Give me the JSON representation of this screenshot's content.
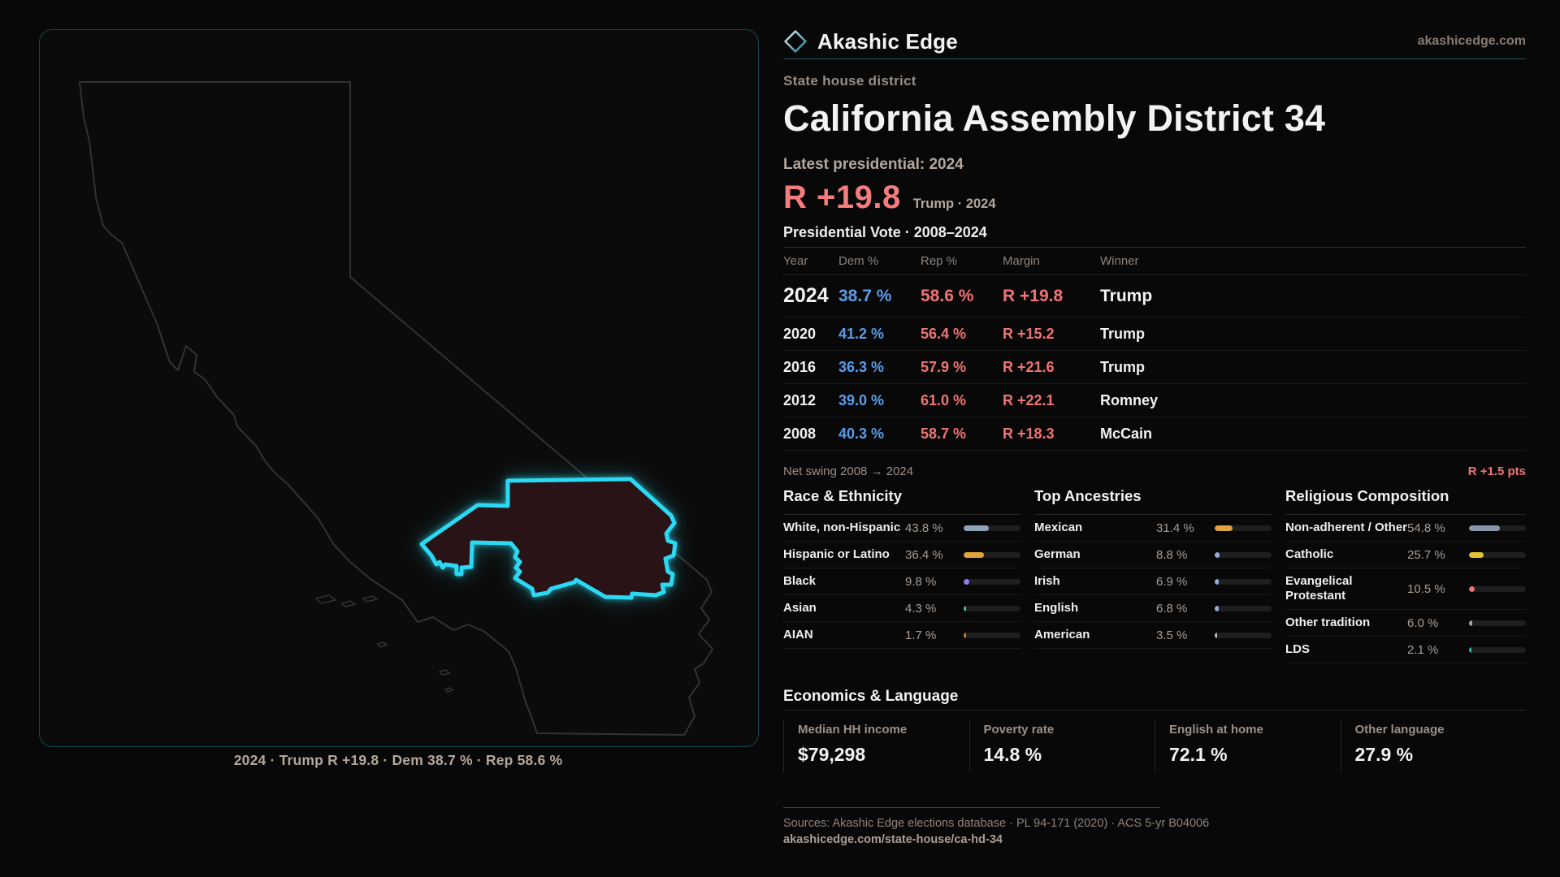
{
  "brand": {
    "name": "Akashic Edge",
    "domain": "akashicedge.com"
  },
  "page": {
    "kicker": "State house district",
    "title": "California Assembly District 34"
  },
  "latest": {
    "label": "Latest presidential: 2024",
    "margin": "R +19.8",
    "detail": "Trump · 2024"
  },
  "vote_table": {
    "title": "Presidential Vote · 2008–2024",
    "columns": [
      "Year",
      "Dem %",
      "Rep %",
      "Margin",
      "Winner"
    ],
    "rows": [
      {
        "year": "2024",
        "dem": "38.7 %",
        "rep": "58.6 %",
        "margin": "R +19.8",
        "winner": "Trump",
        "main": true
      },
      {
        "year": "2020",
        "dem": "41.2 %",
        "rep": "56.4 %",
        "margin": "R +15.2",
        "winner": "Trump",
        "main": false
      },
      {
        "year": "2016",
        "dem": "36.3 %",
        "rep": "57.9 %",
        "margin": "R +21.6",
        "winner": "Trump",
        "main": false
      },
      {
        "year": "2012",
        "dem": "39.0 %",
        "rep": "61.0 %",
        "margin": "R +22.1",
        "winner": "Romney",
        "main": false
      },
      {
        "year": "2008",
        "dem": "40.3 %",
        "rep": "58.7 %",
        "margin": "R +18.3",
        "winner": "McCain",
        "main": false
      }
    ]
  },
  "net_swing": {
    "label": "Net swing 2008 → 2024",
    "value": "R +1.5 pts"
  },
  "demographics": [
    {
      "title": "Race & Ethnicity",
      "rows": [
        {
          "label": "White, non-Hispanic",
          "value": "43.8 %",
          "pct": 43.8,
          "color": "#8fa3b8"
        },
        {
          "label": "Hispanic or Latino",
          "value": "36.4 %",
          "pct": 36.4,
          "color": "#e0a33c"
        },
        {
          "label": "Black",
          "value": "9.8 %",
          "pct": 9.8,
          "color": "#8b7ff0"
        },
        {
          "label": "Asian",
          "value": "4.3 %",
          "pct": 4.3,
          "color": "#2ec49e"
        },
        {
          "label": "AIAN",
          "value": "1.7 %",
          "pct": 1.7,
          "color": "#cf7a2a"
        }
      ]
    },
    {
      "title": "Top Ancestries",
      "rows": [
        {
          "label": "Mexican",
          "value": "31.4 %",
          "pct": 31.4,
          "color": "#e0a33c"
        },
        {
          "label": "German",
          "value": "8.8 %",
          "pct": 8.8,
          "color": "#8fb0d8"
        },
        {
          "label": "Irish",
          "value": "6.9 %",
          "pct": 6.9,
          "color": "#8fb0d8"
        },
        {
          "label": "English",
          "value": "6.8 %",
          "pct": 6.8,
          "color": "#8fb0d8"
        },
        {
          "label": "American",
          "value": "3.5 %",
          "pct": 3.5,
          "color": "#aebccb"
        }
      ]
    },
    {
      "title": "Religious Composition",
      "rows": [
        {
          "label": "Non-adherent / Other",
          "value": "54.8 %",
          "pct": 54.8,
          "color": "#8a94a8"
        },
        {
          "label": "Catholic",
          "value": "25.7 %",
          "pct": 25.7,
          "color": "#e3c235"
        },
        {
          "label": "Evangelical Protestant",
          "value": "10.5 %",
          "pct": 10.5,
          "color": "#ef7272"
        },
        {
          "label": "Other tradition",
          "value": "6.0 %",
          "pct": 6.0,
          "color": "#93a7bd"
        },
        {
          "label": "LDS",
          "value": "2.1 %",
          "pct": 2.1,
          "color": "#25bfae"
        }
      ]
    }
  ],
  "economics": {
    "title": "Economics & Language",
    "stats": [
      {
        "label": "Median HH income",
        "value": "$79,298"
      },
      {
        "label": "Poverty rate",
        "value": "14.8 %"
      },
      {
        "label": "English at home",
        "value": "72.1 %"
      },
      {
        "label": "Other language",
        "value": "27.9 %"
      }
    ]
  },
  "map": {
    "caption": "2024 · Trump  R +19.8 · Dem 38.7 % · Rep 58.6 %"
  },
  "footer": {
    "sources": "Sources: Akashic Edge elections database · PL 94-171 (2020) · ACS 5-yr B04006",
    "permalink": "akashicedge.com/state-house/ca-hd-34"
  },
  "colors": {
    "accent_cyan": "#2bd9f2",
    "dem_blue": "#5b9ce8",
    "rep_red": "#f07474",
    "tan": "#b2a79d",
    "panel_border": "#16454f",
    "district_fill": "#2a1317"
  }
}
